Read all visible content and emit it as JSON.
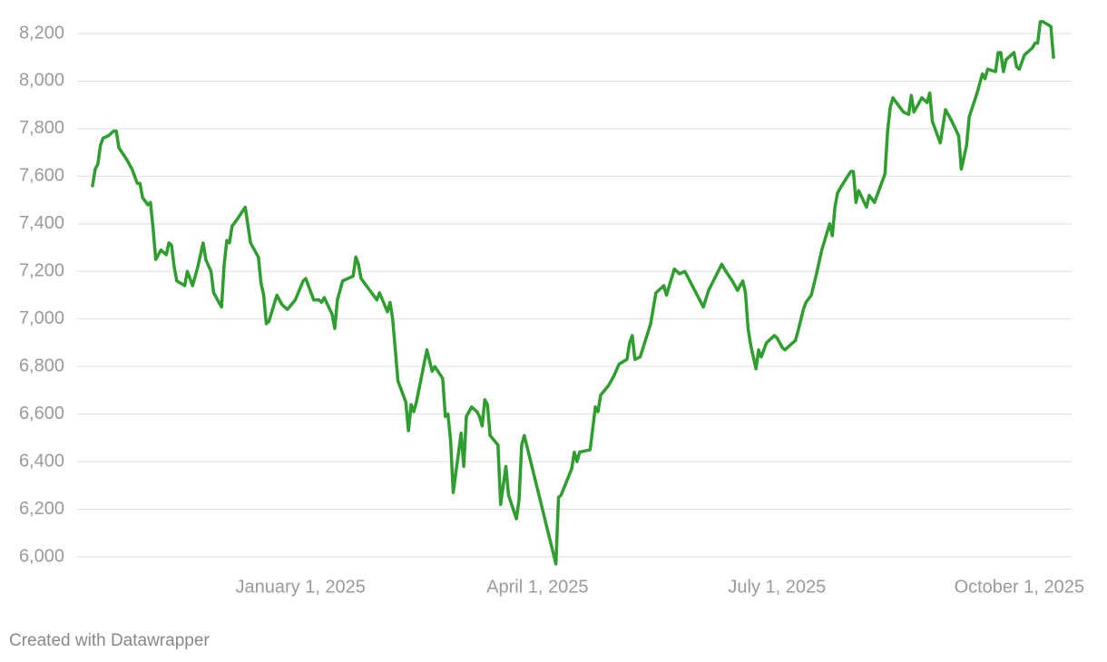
{
  "chart_data": {
    "type": "line",
    "x": [
      "2024-10-14",
      "2024-10-15",
      "2024-10-16",
      "2024-10-17",
      "2024-10-18",
      "2024-10-20",
      "2024-10-22",
      "2024-10-23",
      "2024-10-24",
      "2024-10-27",
      "2024-10-29",
      "2024-10-31",
      "2024-11-01",
      "2024-11-02",
      "2024-11-04",
      "2024-11-05",
      "2024-11-06",
      "2024-11-07",
      "2024-11-09",
      "2024-11-11",
      "2024-11-12",
      "2024-11-13",
      "2024-11-14",
      "2024-11-15",
      "2024-11-18",
      "2024-11-19",
      "2024-11-21",
      "2024-11-23",
      "2024-11-25",
      "2024-11-26",
      "2024-11-28",
      "2024-11-29",
      "2024-12-02",
      "2024-12-03",
      "2024-12-04",
      "2024-12-05",
      "2024-12-06",
      "2024-12-08",
      "2024-12-11",
      "2024-12-13",
      "2024-12-16",
      "2024-12-17",
      "2024-12-18",
      "2024-12-19",
      "2024-12-20",
      "2024-12-23",
      "2024-12-25",
      "2024-12-27",
      "2024-12-30",
      "2025-01-02",
      "2025-01-03",
      "2025-01-06",
      "2025-01-08",
      "2025-01-09",
      "2025-01-10",
      "2025-01-13",
      "2025-01-14",
      "2025-01-15",
      "2025-01-17",
      "2025-01-21",
      "2025-01-22",
      "2025-01-23",
      "2025-01-24",
      "2025-01-30",
      "2025-01-31",
      "2025-02-03",
      "2025-02-04",
      "2025-02-05",
      "2025-02-07",
      "2025-02-10",
      "2025-02-11",
      "2025-02-12",
      "2025-02-13",
      "2025-02-14",
      "2025-02-18",
      "2025-02-20",
      "2025-02-21",
      "2025-02-24",
      "2025-02-25",
      "2025-02-26",
      "2025-02-27",
      "2025-02-28",
      "2025-03-03",
      "2025-03-04",
      "2025-03-05",
      "2025-03-07",
      "2025-03-09",
      "2025-03-10",
      "2025-03-11",
      "2025-03-12",
      "2025-03-13",
      "2025-03-14",
      "2025-03-17",
      "2025-03-18",
      "2025-03-20",
      "2025-03-21",
      "2025-03-24",
      "2025-03-25",
      "2025-03-26",
      "2025-03-27",
      "2025-04-08",
      "2025-04-09",
      "2025-04-10",
      "2025-04-14",
      "2025-04-15",
      "2025-04-16",
      "2025-04-17",
      "2025-04-21",
      "2025-04-23",
      "2025-04-24",
      "2025-04-25",
      "2025-04-28",
      "2025-04-30",
      "2025-05-02",
      "2025-05-05",
      "2025-05-06",
      "2025-05-07",
      "2025-05-08",
      "2025-05-10",
      "2025-05-14",
      "2025-05-16",
      "2025-05-19",
      "2025-05-20",
      "2025-05-23",
      "2025-05-25",
      "2025-05-27",
      "2025-06-03",
      "2025-06-05",
      "2025-06-10",
      "2025-06-11",
      "2025-06-14",
      "2025-06-16",
      "2025-06-18",
      "2025-06-19",
      "2025-06-20",
      "2025-06-21",
      "2025-06-23",
      "2025-06-24",
      "2025-06-25",
      "2025-06-27",
      "2025-06-30",
      "2025-07-01",
      "2025-07-03",
      "2025-07-04",
      "2025-07-06",
      "2025-07-08",
      "2025-07-09",
      "2025-07-11",
      "2025-07-12",
      "2025-07-14",
      "2025-07-16",
      "2025-07-18",
      "2025-07-21",
      "2025-07-22",
      "2025-07-23",
      "2025-07-24",
      "2025-07-25",
      "2025-07-29",
      "2025-07-30",
      "2025-07-31",
      "2025-08-01",
      "2025-08-04",
      "2025-08-05",
      "2025-08-07",
      "2025-08-09",
      "2025-08-11",
      "2025-08-12",
      "2025-08-13",
      "2025-08-14",
      "2025-08-16",
      "2025-08-18",
      "2025-08-20",
      "2025-08-21",
      "2025-08-22",
      "2025-08-25",
      "2025-08-27",
      "2025-08-28",
      "2025-08-29",
      "2025-09-01",
      "2025-09-03",
      "2025-09-05",
      "2025-09-08",
      "2025-09-09",
      "2025-09-11",
      "2025-09-12",
      "2025-09-15",
      "2025-09-17",
      "2025-09-18",
      "2025-09-19",
      "2025-09-22",
      "2025-09-23",
      "2025-09-24",
      "2025-09-25",
      "2025-09-26",
      "2025-09-29",
      "2025-09-30",
      "2025-10-01",
      "2025-10-03",
      "2025-10-06",
      "2025-10-07",
      "2025-10-08",
      "2025-10-09",
      "2025-10-10",
      "2025-10-13",
      "2025-10-14"
    ],
    "values": [
      7560,
      7630,
      7650,
      7730,
      7760,
      7770,
      7790,
      7790,
      7720,
      7670,
      7630,
      7570,
      7570,
      7510,
      7480,
      7490,
      7380,
      7250,
      7290,
      7270,
      7320,
      7310,
      7220,
      7160,
      7140,
      7200,
      7140,
      7220,
      7320,
      7250,
      7200,
      7110,
      7050,
      7230,
      7330,
      7320,
      7390,
      7420,
      7470,
      7320,
      7260,
      7150,
      7100,
      6980,
      6990,
      7100,
      7060,
      7040,
      7080,
      7160,
      7170,
      7080,
      7080,
      7070,
      7090,
      7020,
      6960,
      7080,
      7160,
      7180,
      7260,
      7230,
      7170,
      7080,
      7110,
      7030,
      7070,
      7000,
      6740,
      6650,
      6530,
      6640,
      6610,
      6650,
      6870,
      6780,
      6800,
      6750,
      6590,
      6600,
      6490,
      6270,
      6520,
      6380,
      6590,
      6630,
      6610,
      6590,
      6550,
      6660,
      6640,
      6510,
      6470,
      6220,
      6380,
      6260,
      6160,
      6240,
      6470,
      6510,
      5970,
      6250,
      6260,
      6370,
      6440,
      6400,
      6440,
      6450,
      6630,
      6610,
      6680,
      6720,
      6760,
      6810,
      6830,
      6900,
      6930,
      6830,
      6840,
      6980,
      7110,
      7140,
      7100,
      7210,
      7190,
      7200,
      7050,
      7120,
      7230,
      7210,
      7160,
      7120,
      7160,
      7110,
      6960,
      6890,
      6790,
      6870,
      6840,
      6900,
      6930,
      6920,
      6880,
      6870,
      6890,
      6910,
      6950,
      7040,
      7070,
      7100,
      7190,
      7290,
      7400,
      7350,
      7470,
      7530,
      7550,
      7620,
      7620,
      7490,
      7540,
      7470,
      7520,
      7490,
      7550,
      7610,
      7790,
      7890,
      7930,
      7900,
      7870,
      7860,
      7940,
      7870,
      7930,
      7910,
      7950,
      7830,
      7740,
      7880,
      7840,
      7770,
      7630,
      7730,
      7850,
      7950,
      8030,
      8010,
      8050,
      8040,
      8120,
      8120,
      8040,
      8090,
      8120,
      8060,
      8050,
      8110,
      8140,
      8160,
      8160,
      8250,
      8250,
      8230,
      8100
    ],
    "color": "#2e9e2e",
    "xlim": [
      "2024-10-14",
      "2025-10-14"
    ],
    "xticks": [
      {
        "value": "2025-01-01",
        "label": "January 1, 2025"
      },
      {
        "value": "2025-04-01",
        "label": "April 1, 2025"
      },
      {
        "value": "2025-07-01",
        "label": "July 1, 2025"
      },
      {
        "value": "2025-10-01",
        "label": "October 1, 2025"
      }
    ],
    "ylim": [
      6000,
      8200
    ],
    "yticks": [
      {
        "value": 6000,
        "label": "6,000"
      },
      {
        "value": 6200,
        "label": "6,200"
      },
      {
        "value": 6400,
        "label": "6,400"
      },
      {
        "value": 6600,
        "label": "6,600"
      },
      {
        "value": 6800,
        "label": "6,800"
      },
      {
        "value": 7000,
        "label": "7,000"
      },
      {
        "value": 7200,
        "label": "7,200"
      },
      {
        "value": 7400,
        "label": "7,400"
      },
      {
        "value": 7600,
        "label": "7,600"
      },
      {
        "value": 7800,
        "label": "7,800"
      },
      {
        "value": 8000,
        "label": "8,000"
      },
      {
        "value": 8200,
        "label": "8,200"
      }
    ],
    "grid": true
  },
  "footer": "Created with Datawrapper"
}
